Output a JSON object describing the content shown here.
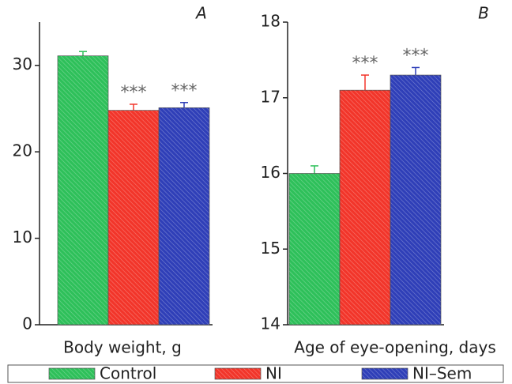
{
  "legend": [
    {
      "name": "Control",
      "color": "#2ec05a"
    },
    {
      "name": "NI",
      "color": "#f2352a"
    },
    {
      "name": "NI–Sem",
      "color": "#2f3fb8"
    }
  ],
  "chart_data": [
    {
      "type": "bar",
      "panel_label": "A",
      "xlabel": "Body weight, g",
      "values": [
        31.1,
        24.8,
        25.1
      ],
      "errors": [
        0.5,
        0.7,
        0.6
      ],
      "significance": [
        null,
        "***",
        "***"
      ],
      "ylim": [
        0,
        35
      ],
      "yticks": [
        0,
        10,
        20,
        30
      ]
    },
    {
      "type": "bar",
      "panel_label": "B",
      "xlabel": "Age of eye-opening, days",
      "values": [
        16.0,
        17.1,
        17.3
      ],
      "errors": [
        0.1,
        0.2,
        0.1
      ],
      "significance": [
        null,
        "***",
        "***"
      ],
      "ylim": [
        14,
        18
      ],
      "yticks": [
        14,
        15,
        16,
        17,
        18
      ]
    }
  ]
}
